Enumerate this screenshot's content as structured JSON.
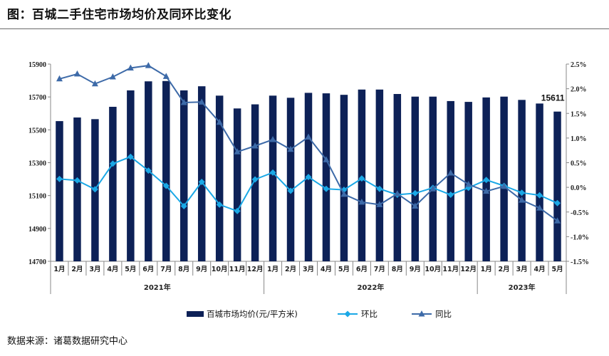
{
  "title": "图：百城二手住宅市场均价及同环比变化",
  "source": "数据来源：诸葛数据研究中心",
  "chart_data": {
    "type": "bar+line",
    "categories": [
      "1月",
      "2月",
      "3月",
      "4月",
      "5月",
      "6月",
      "7月",
      "8月",
      "9月",
      "10月",
      "11月",
      "12月",
      "1月",
      "2月",
      "3月",
      "4月",
      "5月",
      "6月",
      "7月",
      "8月",
      "9月",
      "10月",
      "11月",
      "12月",
      "1月",
      "2月",
      "3月",
      "4月",
      "5月"
    ],
    "years": [
      {
        "label": "2021年",
        "count": 12
      },
      {
        "label": "2022年",
        "count": 12
      },
      {
        "label": "2023年",
        "count": 5
      }
    ],
    "left_axis": {
      "min": 14700,
      "max": 15900,
      "ticks": [
        14700,
        14900,
        15100,
        15300,
        15500,
        15700,
        15900
      ]
    },
    "right_axis": {
      "min": -1.5,
      "max": 2.5,
      "ticks": [
        "-1.5%",
        "-1.0%",
        "-0.5%",
        "0.0%",
        "0.5%",
        "1.0%",
        "1.5%",
        "2.0%",
        "2.5%"
      ]
    },
    "series": [
      {
        "name": "百城市场均价(元/平方米)",
        "type": "bar",
        "axis": "left",
        "color": "#0d2157",
        "values": [
          15553,
          15575,
          15565,
          15640,
          15740,
          15795,
          15797,
          15740,
          15765,
          15708,
          15630,
          15655,
          15708,
          15695,
          15725,
          15722,
          15713,
          15745,
          15745,
          15718,
          15702,
          15702,
          15675,
          15670,
          15697,
          15702,
          15682,
          15660,
          15611
        ]
      },
      {
        "name": "环比",
        "type": "line",
        "axis": "right",
        "color": "#1aa8e6",
        "marker": "diamond",
        "values": [
          0.17,
          0.14,
          -0.04,
          0.48,
          0.62,
          0.34,
          0.03,
          -0.38,
          0.11,
          -0.35,
          -0.48,
          0.16,
          0.3,
          -0.07,
          0.21,
          -0.03,
          -0.05,
          0.18,
          -0.03,
          -0.15,
          -0.12,
          -0.01,
          -0.15,
          -0.01,
          0.15,
          0.03,
          -0.11,
          -0.16,
          -0.32
        ]
      },
      {
        "name": "同比",
        "type": "line",
        "axis": "right",
        "color": "#3d6aa8",
        "marker": "triangle",
        "values": [
          2.2,
          2.3,
          2.1,
          2.24,
          2.42,
          2.47,
          2.25,
          1.72,
          1.73,
          1.32,
          0.72,
          0.84,
          0.97,
          0.77,
          1.02,
          0.56,
          -0.14,
          -0.3,
          -0.35,
          -0.13,
          -0.38,
          -0.03,
          0.29,
          0.06,
          -0.08,
          0.02,
          -0.26,
          -0.42,
          -0.68
        ]
      }
    ],
    "data_labels": [
      {
        "index": 28,
        "text": "15611"
      }
    ],
    "legend_position": "bottom"
  }
}
